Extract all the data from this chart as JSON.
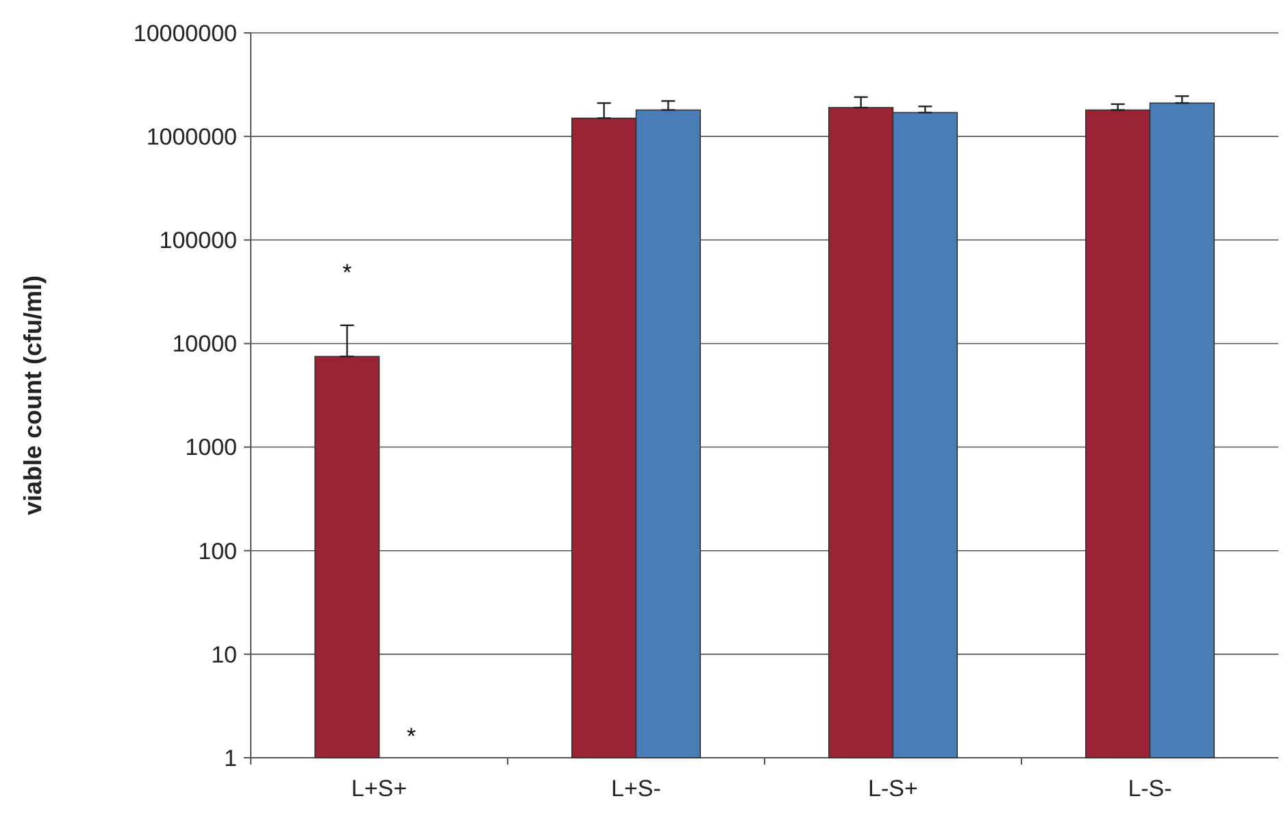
{
  "chart_data": {
    "type": "bar",
    "ylabel": "viable count (cfu/ml)",
    "categories": [
      "L+S+",
      "L+S-",
      "L-S+",
      "L-S-"
    ],
    "series": [
      {
        "color": "#9b2336",
        "values": [
          7500,
          1500000,
          1900000,
          1800000
        ],
        "errors": [
          [
            7500,
            15000
          ],
          [
            1500000,
            2100000
          ],
          [
            1900000,
            2400000
          ],
          [
            1800000,
            2050000
          ]
        ]
      },
      {
        "color": "#4a7db8",
        "values": [
          null,
          1800000,
          1700000,
          2100000
        ],
        "errors": [
          null,
          [
            1800000,
            2200000
          ],
          [
            1700000,
            1950000
          ],
          [
            2100000,
            2450000
          ]
        ]
      }
    ],
    "log": true,
    "ylim": [
      1,
      10000000
    ],
    "yticks": [
      1,
      10,
      100,
      1000,
      10000,
      100000,
      1000000,
      10000000
    ],
    "grid": "y",
    "annotations": [
      "*",
      "*"
    ]
  }
}
